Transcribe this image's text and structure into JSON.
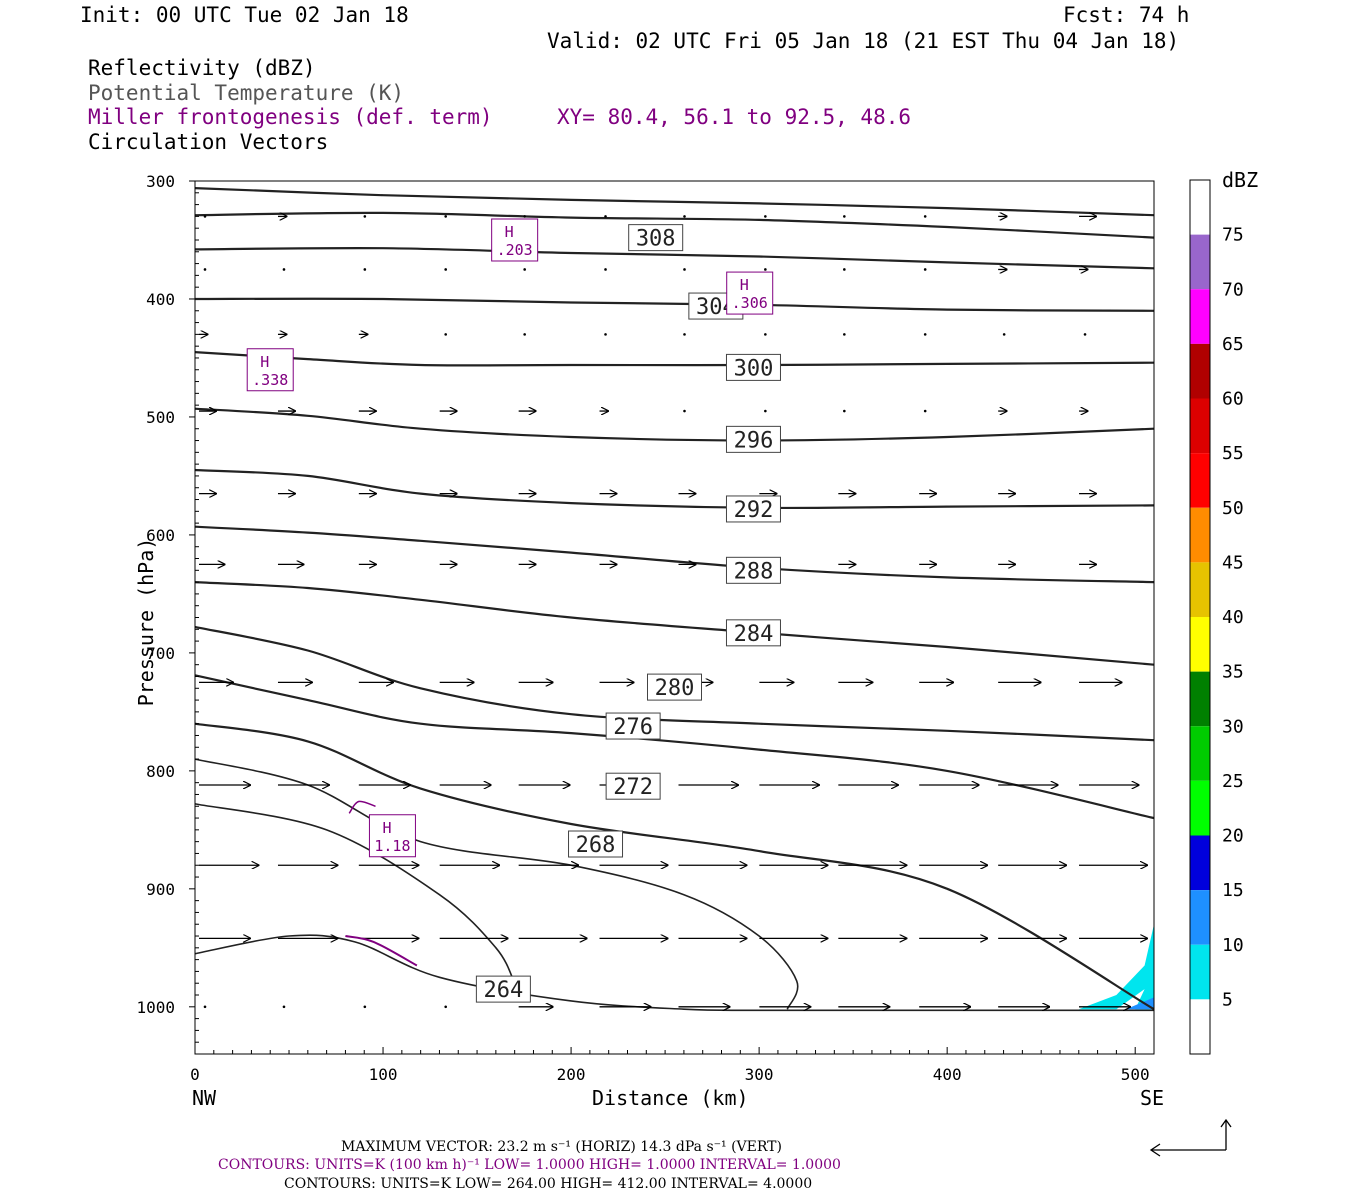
{
  "header": {
    "init": "Init: 00 UTC Tue 02 Jan 18",
    "fcst": "Fcst:   74 h",
    "valid": "Valid: 02 UTC Fri 05 Jan 18 (21 EST Thu 04 Jan 18)"
  },
  "fields": {
    "reflectivity": "Reflectivity (dBZ)",
    "theta": "Potential Temperature (K)",
    "miller": "Miller frontogenesis (def. term)",
    "xy": "XY=  80.4, 56.1 to  92.5, 48.6",
    "vectors": "Circulation Vectors"
  },
  "footer": {
    "max_vector": "MAXIMUM VECTOR:  23.2 m s⁻¹ (HORIZ)        14.3 dPa s⁻¹ (VERT)",
    "contours1": "CONTOURS:  UNITS=K (100 km h)⁻¹  LOW=   1.0000       HIGH=  1.0000       INTERVAL=    1.0000",
    "contours2": "CONTOURS:  UNITS=K  LOW=  264.00       HIGH=  412.00       INTERVAL=    4.0000"
  },
  "colors": {
    "theta": "#222222",
    "frontogenesis": "#800080",
    "reflectivity_5": "#00e5ee",
    "reflectivity_10": "#1e90ff"
  },
  "chart_data": {
    "type": "line",
    "title": "",
    "xlabel": "Distance (km)",
    "ylabel": "Pressure (hPa)",
    "xlim": [
      0,
      510
    ],
    "ylim": [
      1040,
      300
    ],
    "x_ticks": [
      0,
      100,
      200,
      300,
      400,
      500
    ],
    "y_ticks": [
      300,
      400,
      500,
      600,
      700,
      800,
      900,
      1000
    ],
    "x_endpoints": {
      "left": "NW",
      "right": "SE"
    },
    "colorbar": {
      "unit": "dBZ",
      "levels": [
        5,
        10,
        15,
        20,
        25,
        30,
        35,
        40,
        45,
        50,
        55,
        60,
        65,
        70,
        75
      ],
      "colors": [
        "#ffffff",
        "#00e5ee",
        "#1e90ff",
        "#0000dd",
        "#00ff00",
        "#00cc00",
        "#008000",
        "#ffff00",
        "#e6c300",
        "#ff8c00",
        "#ff0000",
        "#dd0000",
        "#b00000",
        "#ff00ff",
        "#9966cc",
        "#ffffff"
      ]
    },
    "theta_contours": [
      {
        "level": 308,
        "label": "308",
        "label_at": [
          245,
          348
        ],
        "x": [
          0,
          100,
          200,
          300,
          400,
          510
        ],
        "p": [
          306,
          312,
          316,
          319,
          323,
          329
        ]
      },
      {
        "level": null,
        "label": "",
        "x": [
          0,
          100,
          200,
          300,
          400,
          510
        ],
        "p": [
          329,
          327,
          331,
          333,
          339,
          348
        ]
      },
      {
        "level": null,
        "label": "",
        "x": [
          0,
          100,
          200,
          300,
          400,
          510
        ],
        "p": [
          358,
          357,
          361,
          364,
          369,
          374
        ]
      },
      {
        "level": 304,
        "label": "304",
        "label_at": [
          277,
          406
        ],
        "x": [
          0,
          100,
          200,
          300,
          400,
          510
        ],
        "p": [
          400,
          400,
          403,
          405,
          409,
          410
        ]
      },
      {
        "level": 300,
        "label": "300",
        "label_at": [
          297,
          458
        ],
        "x": [
          0,
          60,
          120,
          200,
          300,
          400,
          510
        ],
        "p": [
          445,
          451,
          456,
          456,
          456,
          455,
          454
        ]
      },
      {
        "level": 296,
        "label": "296",
        "label_at": [
          297,
          519
        ],
        "x": [
          0,
          60,
          120,
          200,
          300,
          400,
          510
        ],
        "p": [
          493,
          499,
          510,
          517,
          520,
          517,
          510
        ]
      },
      {
        "level": 292,
        "label": "292",
        "label_at": [
          297,
          578
        ],
        "x": [
          0,
          60,
          120,
          200,
          300,
          400,
          510
        ],
        "p": [
          545,
          550,
          565,
          573,
          577,
          576,
          575
        ]
      },
      {
        "level": 288,
        "label": "288",
        "label_at": [
          297,
          630
        ],
        "x": [
          0,
          60,
          120,
          200,
          300,
          400,
          510
        ],
        "p": [
          593,
          598,
          605,
          615,
          628,
          636,
          640
        ]
      },
      {
        "level": 284,
        "label": "284",
        "label_at": [
          297,
          683
        ],
        "x": [
          0,
          60,
          120,
          200,
          300,
          400,
          510
        ],
        "p": [
          640,
          645,
          655,
          670,
          683,
          695,
          710
        ]
      },
      {
        "level": 280,
        "label": "280",
        "label_at": [
          255,
          729
        ],
        "x": [
          0,
          60,
          120,
          200,
          300,
          400,
          510
        ],
        "p": [
          678,
          698,
          730,
          752,
          760,
          766,
          774
        ]
      },
      {
        "level": 276,
        "label": "276",
        "label_at": [
          233,
          762
        ],
        "x": [
          0,
          60,
          120,
          200,
          300,
          400,
          510
        ],
        "p": [
          719,
          740,
          760,
          768,
          782,
          800,
          840
        ]
      },
      {
        "level": 272,
        "label": "272",
        "label_at": [
          233,
          813
        ],
        "x": [
          0,
          60,
          120,
          200,
          300,
          400,
          510
        ],
        "p": [
          760,
          775,
          815,
          845,
          868,
          900,
          1002
        ]
      },
      {
        "level": 268,
        "label": "268",
        "label_at": [
          213,
          862
        ],
        "x": [
          0,
          60,
          120,
          200,
          260,
          300,
          320,
          315
        ],
        "p": [
          790,
          812,
          860,
          880,
          905,
          940,
          978,
          1002
        ]
      },
      {
        "level": null,
        "label": "",
        "x": [
          0,
          70,
          130,
          160,
          170
        ],
        "p": [
          828,
          850,
          905,
          950,
          980
        ]
      },
      {
        "level": 264,
        "label": "264",
        "label_at": [
          164,
          985
        ],
        "x": [
          0,
          50,
          85,
          130,
          200,
          260,
          300,
          400,
          510
        ],
        "p": [
          955,
          940,
          945,
          975,
          995,
          1002,
          1003,
          1003,
          1003
        ]
      }
    ],
    "frontogenesis_maxima": [
      {
        "label": "H",
        "value": ".203",
        "x": 170,
        "p": 350
      },
      {
        "label": "H",
        "value": ".306",
        "x": 295,
        "p": 395
      },
      {
        "label": "H",
        "value": ".338",
        "x": 40,
        "p": 460
      },
      {
        "label": "H",
        "value": "1.18",
        "x": 105,
        "p": 855
      }
    ],
    "reflectivity_areas": [
      {
        "dbz": 5,
        "x": [
          470,
          490,
          505,
          510,
          510,
          500,
          505,
          490
        ],
        "p": [
          1002,
          990,
          965,
          930,
          1002,
          1002,
          985,
          1002
        ]
      },
      {
        "dbz": 10,
        "x": [
          495,
          510,
          510
        ],
        "p": [
          1002,
          992,
          1002
        ]
      }
    ],
    "vectors": {
      "x": [
        0,
        42,
        85,
        128,
        170,
        213,
        255,
        298,
        340,
        383,
        425,
        468
      ],
      "rows": [
        {
          "p": 330,
          "u": [
            0,
            1,
            0,
            0,
            0,
            0,
            0,
            0,
            0,
            0,
            1,
            2
          ]
        },
        {
          "p": 375,
          "u": [
            0,
            0,
            0,
            0,
            0,
            0,
            0,
            0,
            0,
            0,
            1,
            1
          ]
        },
        {
          "p": 430,
          "u": [
            1,
            1,
            1,
            0,
            0,
            0,
            0,
            0,
            0,
            0,
            0,
            0
          ]
        },
        {
          "p": 495,
          "u": [
            2,
            2,
            2,
            2,
            2,
            1,
            0,
            0,
            0,
            0,
            1,
            1
          ]
        },
        {
          "p": 565,
          "u": [
            2,
            2,
            2,
            2,
            2,
            2,
            2,
            2,
            2,
            2,
            2,
            2
          ]
        },
        {
          "p": 625,
          "u": [
            3,
            3,
            2,
            2,
            2,
            2,
            2,
            2,
            2,
            2,
            2,
            2
          ]
        },
        {
          "p": 725,
          "u": [
            4,
            4,
            4,
            4,
            4,
            4,
            4,
            4,
            4,
            4,
            5,
            5
          ]
        },
        {
          "p": 812,
          "u": [
            6,
            6,
            6,
            6,
            6,
            6,
            7,
            7,
            7,
            7,
            7,
            7
          ]
        },
        {
          "p": 880,
          "u": [
            7,
            7,
            7,
            7,
            7,
            8,
            8,
            8,
            8,
            8,
            8,
            8
          ]
        },
        {
          "p": 942,
          "u": [
            6,
            7,
            7,
            8,
            8,
            8,
            8,
            8,
            8,
            8,
            8,
            8
          ]
        },
        {
          "p": 1000,
          "u": [
            0,
            0,
            0,
            0,
            4,
            6,
            6,
            6,
            6,
            6,
            6,
            6
          ]
        }
      ]
    }
  }
}
